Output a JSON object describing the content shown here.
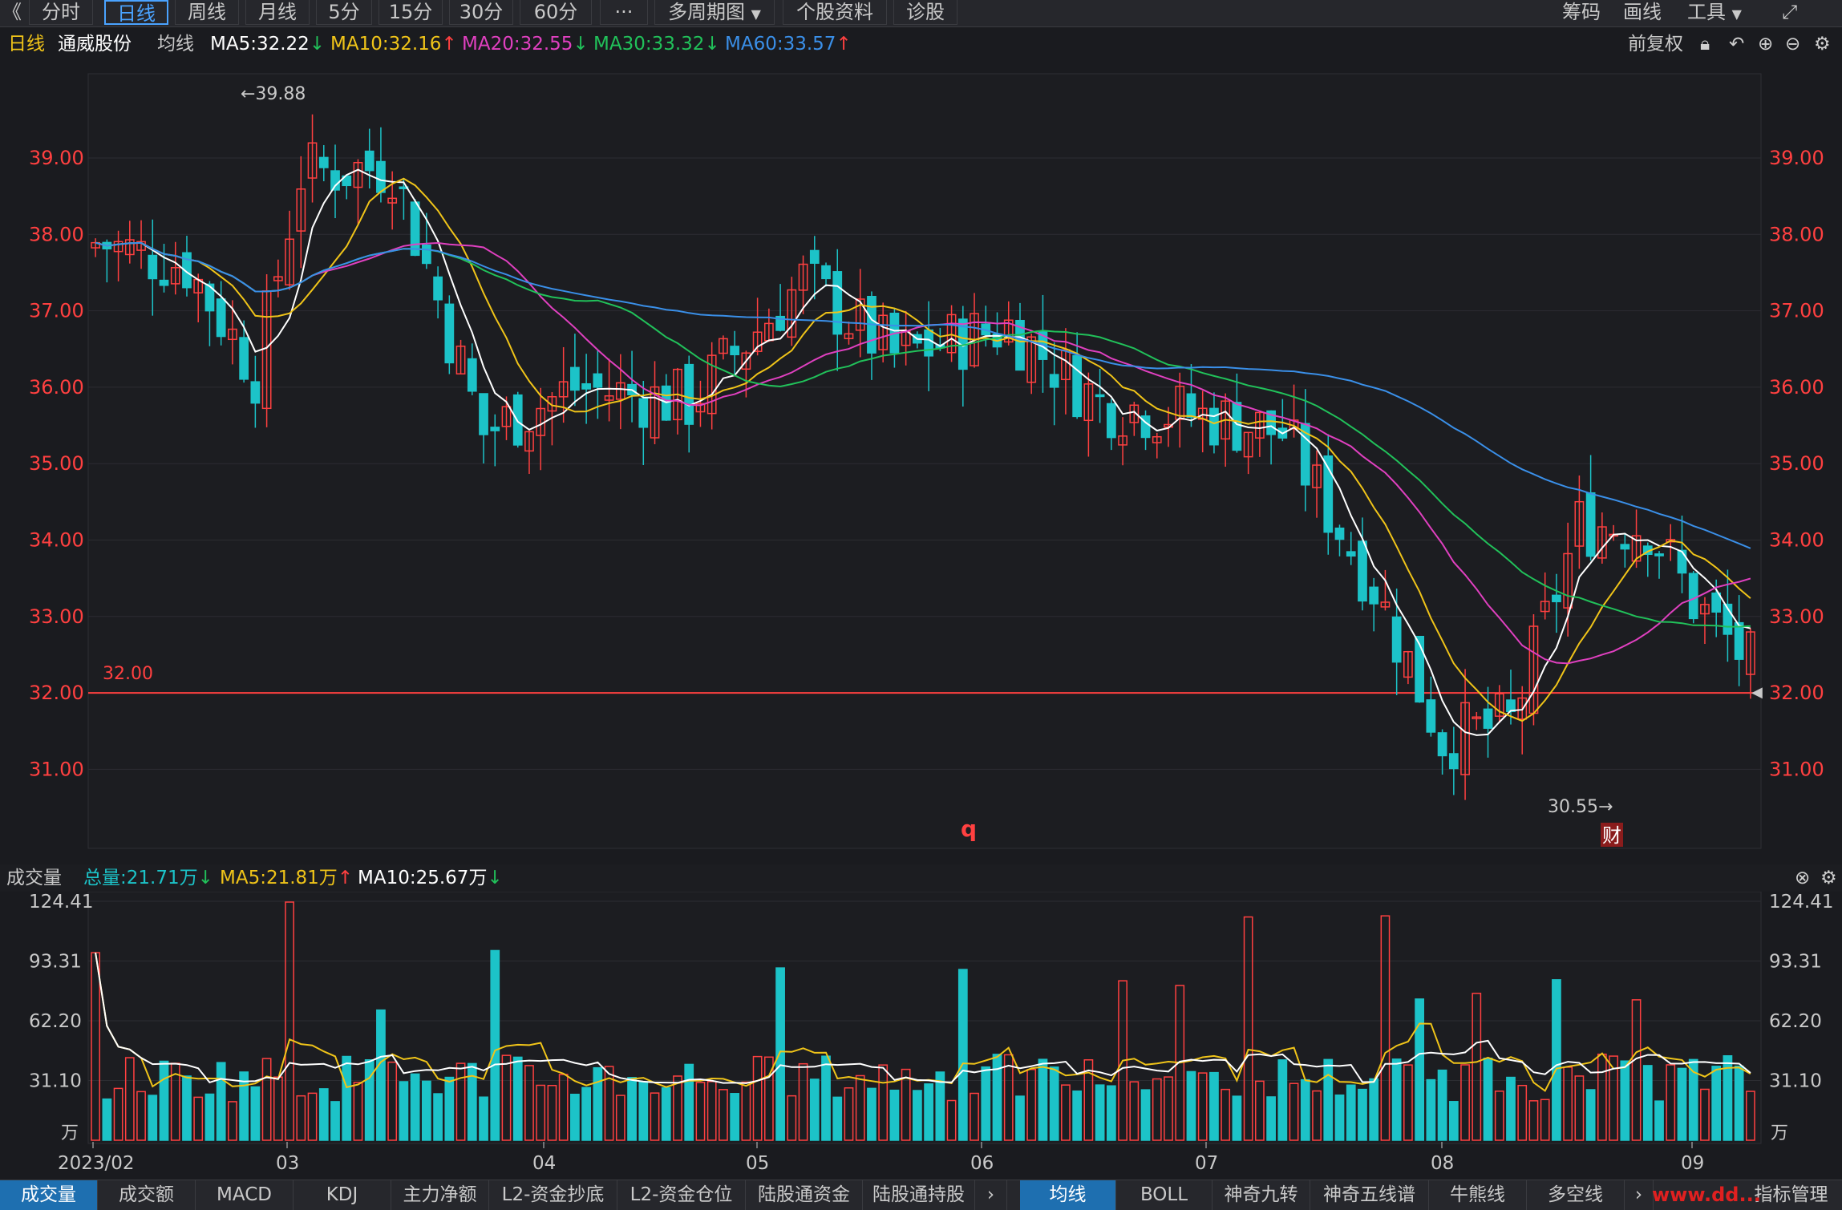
{
  "toolbar": {
    "back_glyph": "《",
    "periods": [
      "分时",
      "日线",
      "周线",
      "月线",
      "5分",
      "15分",
      "30分",
      "60分",
      "···",
      "多周期图",
      "个股资料",
      "诊股"
    ],
    "active_period": "日线",
    "right_items": [
      "筹码",
      "画线",
      "工具"
    ]
  },
  "legend": {
    "period": "日线",
    "stock_name": "通威股份",
    "ma_label": "均线",
    "ma5": "MA5:32.22",
    "ma10": "MA10:32.16",
    "ma20": "MA20:32.55",
    "ma30": "MA30:33.32",
    "ma60": "MA60:33.57",
    "adjust": "前复权"
  },
  "colors": {
    "up": "#ff4040",
    "down": "#1cc3c8",
    "ma5": "#ffffff",
    "ma10": "#f0c419",
    "ma20": "#e040c0",
    "ma30": "#21c15a",
    "ma60": "#3a8fe8",
    "vol_total": "#1cc3c8",
    "ref_line": "#ff4040"
  },
  "main_chart": {
    "y_ticks": [
      "39.00",
      "38.00",
      "37.00",
      "36.00",
      "35.00",
      "34.00",
      "33.00",
      "32.00",
      "31.00"
    ],
    "ref_line_label": "32.00",
    "high_annotation": "←39.88",
    "low_annotation": "30.55→",
    "marker_q": "q",
    "marker_cai": "财"
  },
  "volume": {
    "label": "成交量",
    "total": "总量:21.71万",
    "ma5": "MA5:21.81万",
    "ma10": "MA10:25.67万",
    "y_ticks": [
      "124.41",
      "93.31",
      "62.20",
      "31.10"
    ],
    "unit": "万"
  },
  "x_axis": {
    "labels": [
      "2023/02",
      "03",
      "04",
      "05",
      "06",
      "07",
      "08",
      "09"
    ]
  },
  "bottom_tabs_left": [
    "成交量",
    "成交额",
    "MACD",
    "KDJ",
    "主力净额",
    "L2-资金抄底",
    "L2-资金仓位",
    "陆股通资金",
    "陆股通持股"
  ],
  "bottom_tabs_right": [
    "均线",
    "BOLL",
    "神奇九转",
    "神奇五线谱",
    "牛熊线",
    "多空线",
    "指标管理"
  ],
  "watermark": "www.dd..."
}
